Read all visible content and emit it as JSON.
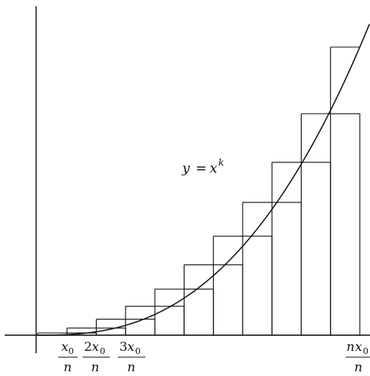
{
  "curve": {
    "label_lhs": "y",
    "label_eq": "=",
    "label_base": "x",
    "label_exp": "k"
  },
  "ticks": [
    {
      "coef": "",
      "sym": "x",
      "sub": "0",
      "den": "n"
    },
    {
      "coef": "2",
      "sym": "x",
      "sub": "0",
      "den": "n"
    },
    {
      "coef": "3",
      "sym": "x",
      "sub": "0",
      "den": "n"
    },
    {
      "coef": "n",
      "sym": "x",
      "sub": "0",
      "den": "n"
    }
  ],
  "rectangles": {
    "count": 11,
    "lower_heights_fraction": [
      0.0,
      0.0078,
      0.0246,
      0.0554,
      0.1004,
      0.1601,
      0.2444,
      0.3436,
      0.4609,
      0.6001,
      0.7687
    ],
    "upper_heights_fraction": [
      0.0078,
      0.0246,
      0.0554,
      0.1004,
      0.1601,
      0.2444,
      0.3436,
      0.4609,
      0.6001,
      0.7687,
      1.0
    ]
  },
  "colors": {
    "stroke": "#111111",
    "background": "#ffffff"
  }
}
